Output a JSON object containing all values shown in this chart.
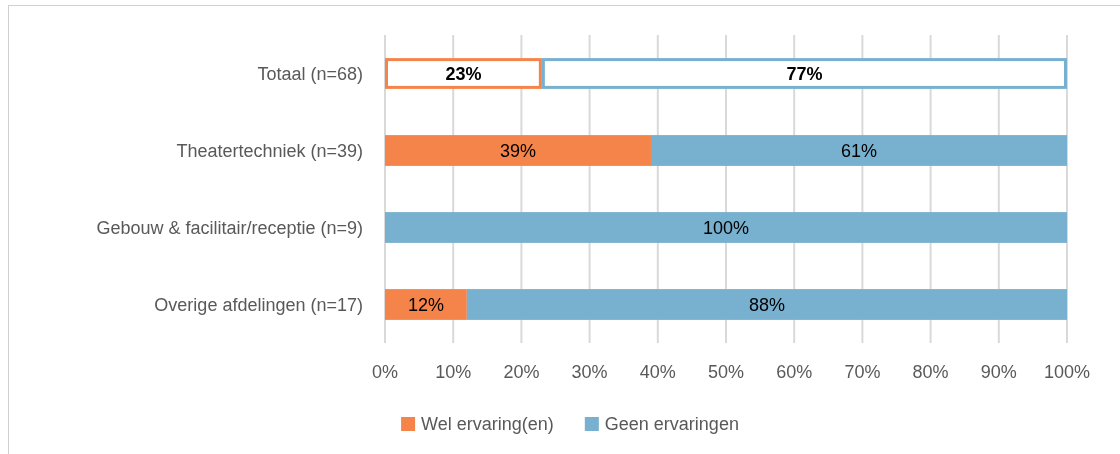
{
  "chart_data": {
    "type": "bar",
    "orientation": "horizontal",
    "stacked": true,
    "categories": [
      "Totaal (n=68)",
      "Theatertechniek (n=39)",
      "Gebouw & facilitair/receptie (n=9)",
      "Overige afdelingen (n=17)"
    ],
    "series": [
      {
        "name": "Wel ervaring(en)",
        "color": "#f4844a",
        "colors": [
          "#ffffff",
          "#f4844a",
          "#f4844a",
          "#f4844a"
        ],
        "values": [
          23,
          39,
          0,
          12
        ],
        "value_labels": [
          "23%",
          "39%",
          null,
          "12%"
        ]
      },
      {
        "name": "Geen ervaringen",
        "color": "#78b0cf",
        "colors": [
          "#ffffff",
          "#78b0cf",
          "#78b0cf",
          "#78b0cf"
        ],
        "values": [
          77,
          61,
          100,
          88
        ],
        "value_labels": [
          "77%",
          "61%",
          "100%",
          "88%"
        ]
      }
    ],
    "xlim": [
      0,
      100
    ],
    "xticks": [
      {
        "value": 0,
        "label": "0%"
      },
      {
        "value": 10,
        "label": "10%"
      },
      {
        "value": 20,
        "label": "20%"
      },
      {
        "value": 30,
        "label": "30%"
      },
      {
        "value": 40,
        "label": "40%"
      },
      {
        "value": 50,
        "label": "50%"
      },
      {
        "value": 60,
        "label": "60%"
      },
      {
        "value": 70,
        "label": "70%"
      },
      {
        "value": 80,
        "label": "80%"
      },
      {
        "value": 90,
        "label": "90%"
      },
      {
        "value": 100,
        "label": "100%"
      }
    ],
    "grid": "x",
    "legend": "bottom"
  }
}
